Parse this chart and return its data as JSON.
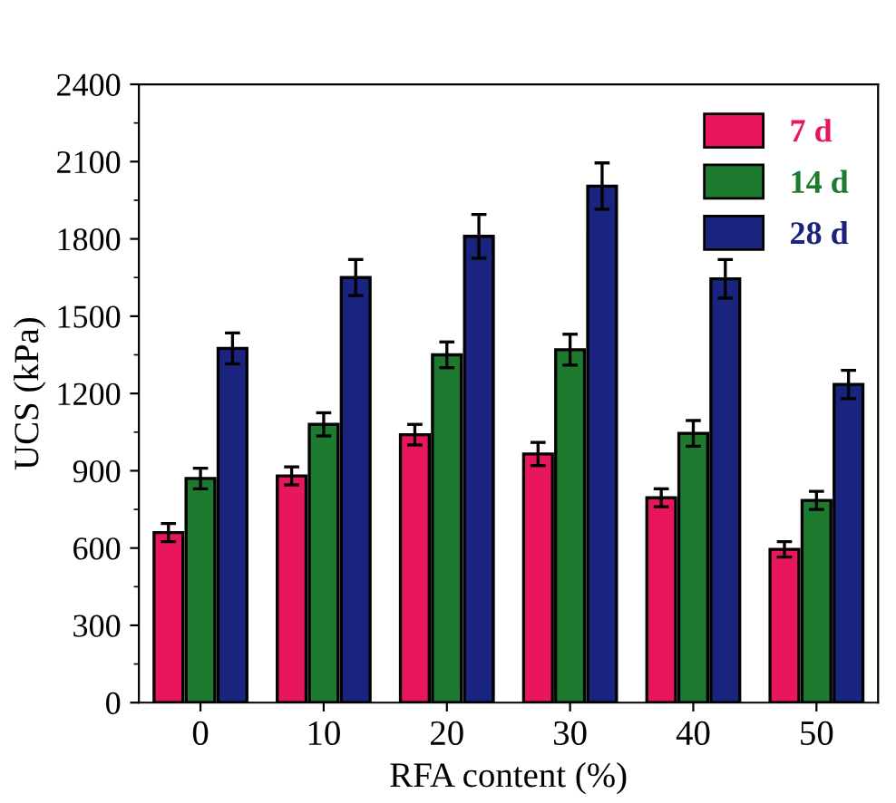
{
  "chart_data": {
    "type": "bar",
    "xlabel": "RFA content (%)",
    "ylabel": "UCS (kPa)",
    "categories": [
      "0",
      "10",
      "20",
      "30",
      "40",
      "50"
    ],
    "series": [
      {
        "name": "7 d",
        "color": "#e8175d",
        "values": [
          660,
          880,
          1040,
          965,
          795,
          595
        ],
        "errors": [
          35,
          35,
          40,
          45,
          35,
          30
        ]
      },
      {
        "name": "14 d",
        "color": "#1e7a2e",
        "values": [
          870,
          1080,
          1350,
          1370,
          1045,
          785
        ],
        "errors": [
          40,
          45,
          50,
          60,
          50,
          35
        ]
      },
      {
        "name": "28 d",
        "color": "#1a237e",
        "values": [
          1375,
          1650,
          1810,
          2005,
          1645,
          1235
        ],
        "errors": [
          60,
          70,
          85,
          90,
          75,
          55
        ]
      }
    ],
    "ylim": [
      0,
      2400
    ],
    "yticks": [
      0,
      300,
      600,
      900,
      1200,
      1500,
      1800,
      2100,
      2400
    ],
    "legend": "top right",
    "grid": false
  }
}
